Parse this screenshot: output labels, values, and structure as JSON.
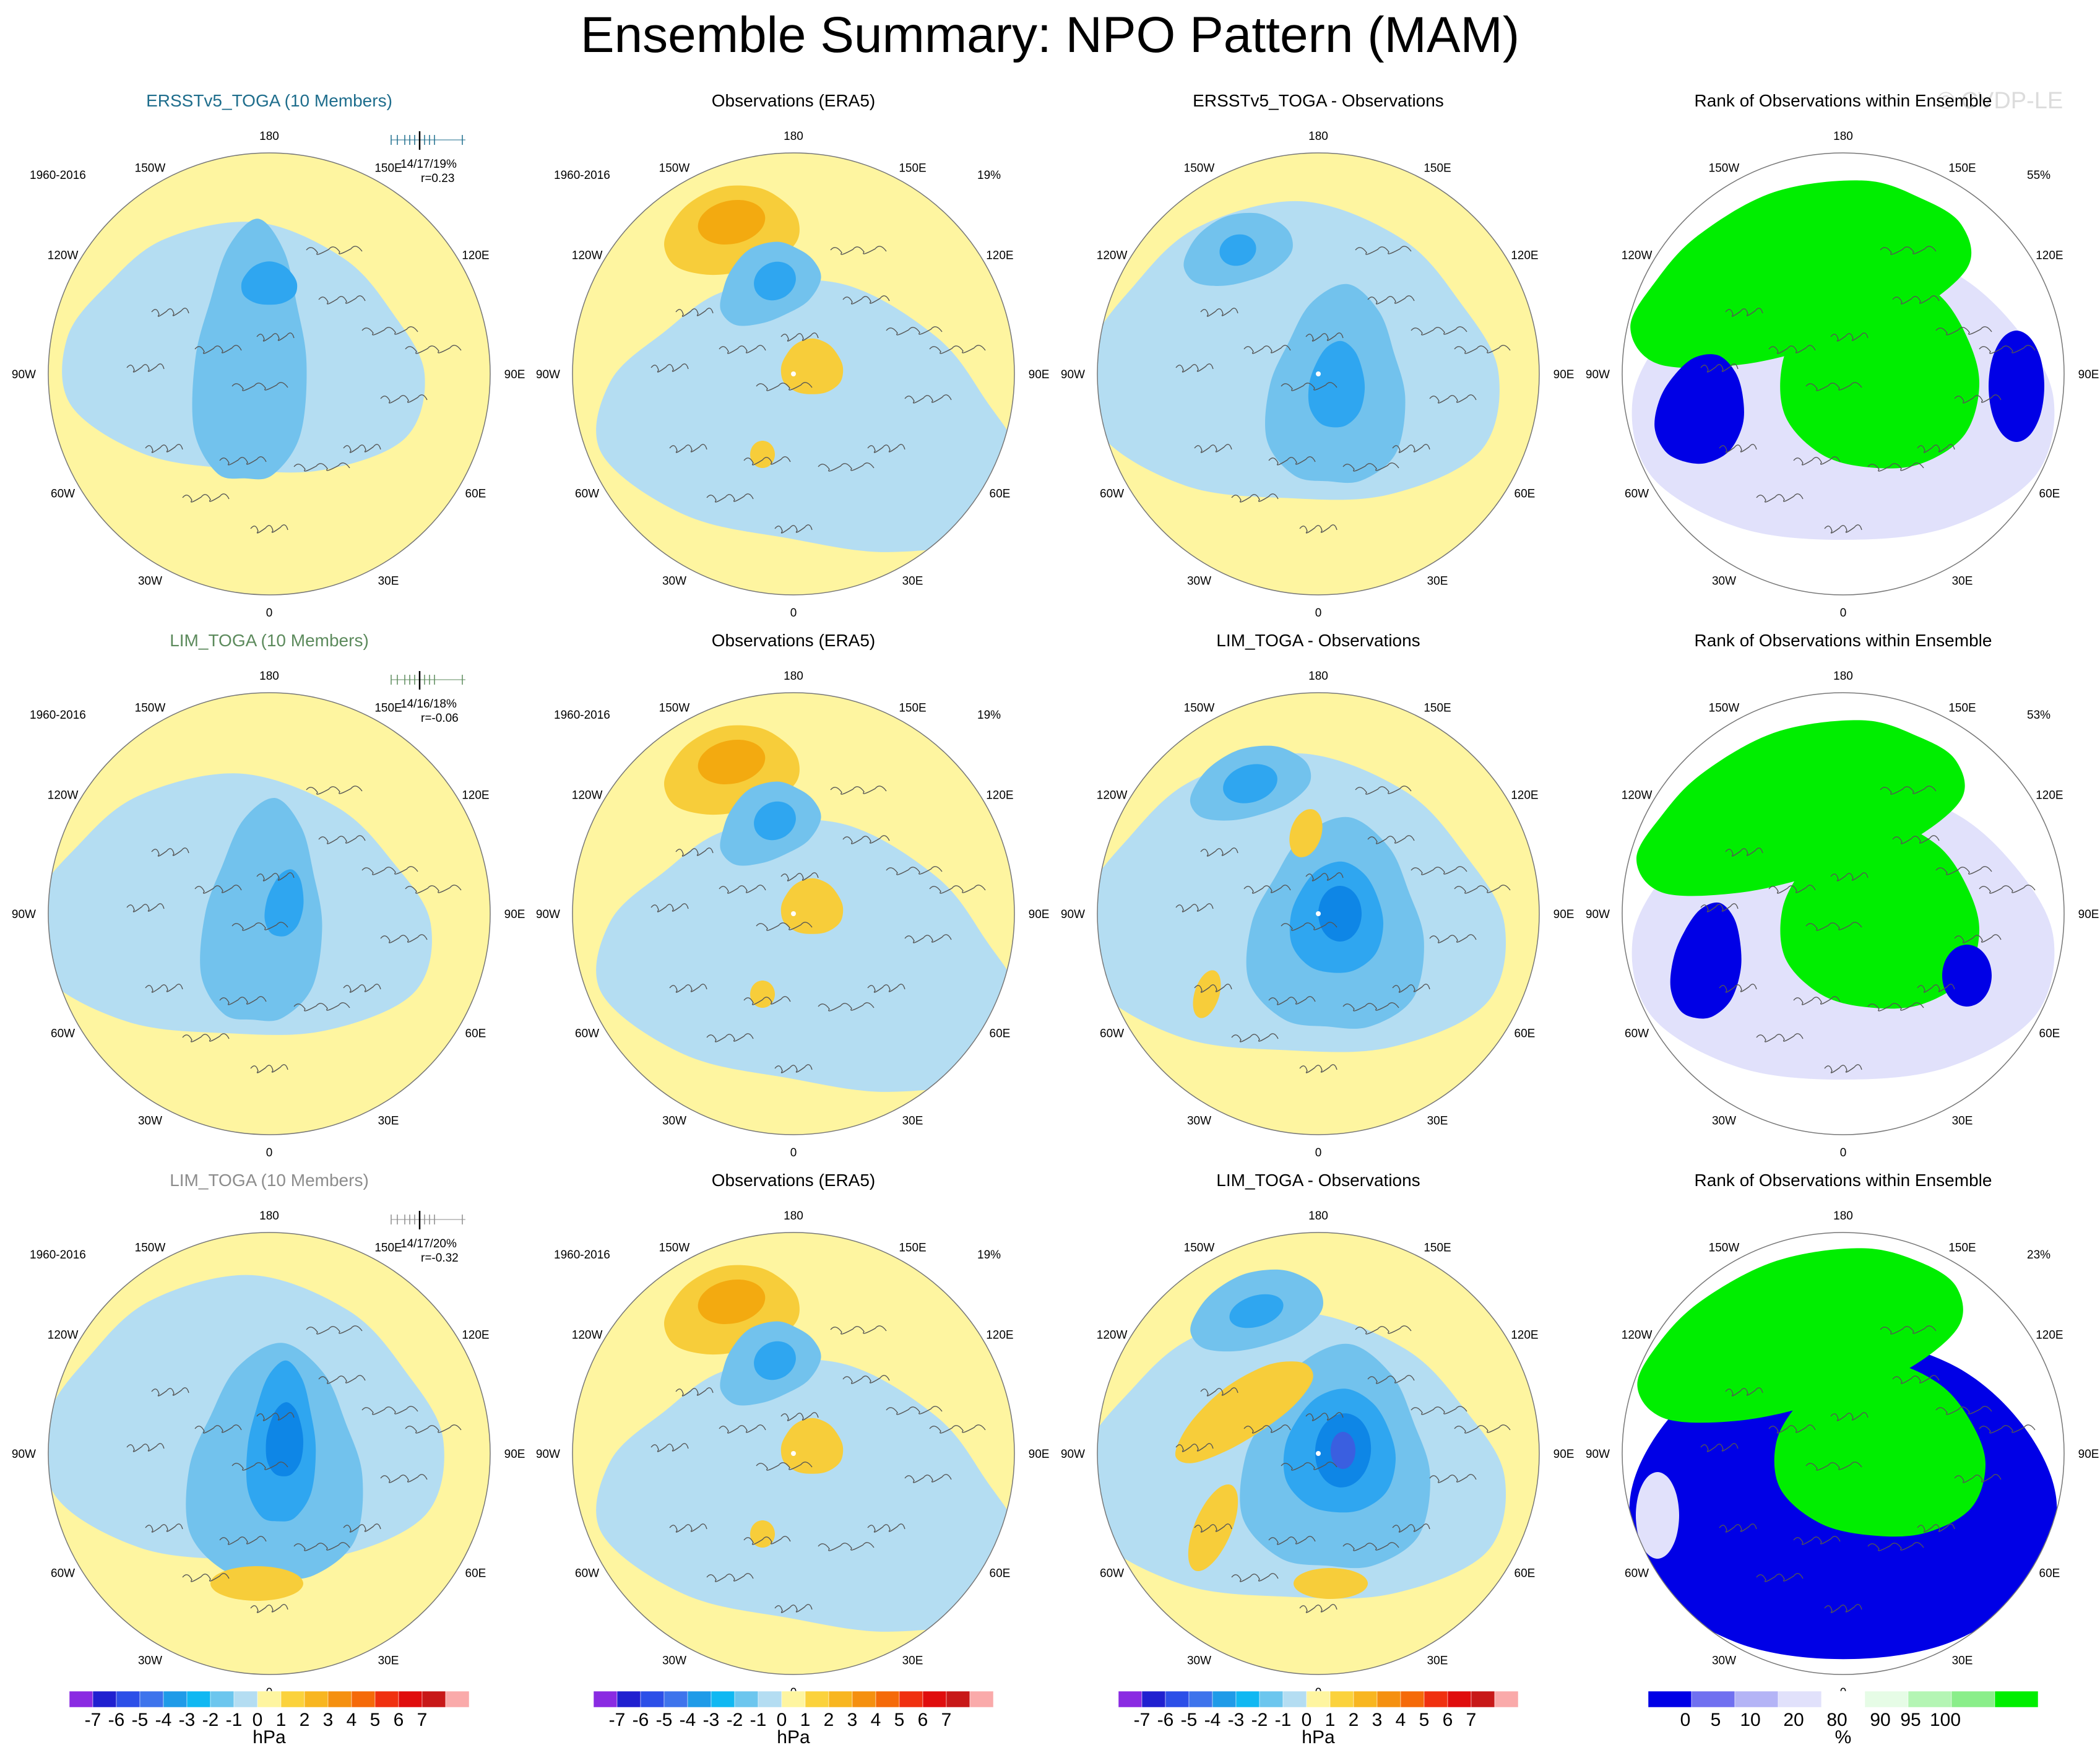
{
  "title": "Ensemble Summary: NPO Pattern (MAM)",
  "watermark": "© CVDP-LE",
  "lon_labels": [
    "180",
    "150E",
    "120E",
    "90E",
    "60E",
    "30E",
    "0",
    "30W",
    "60W",
    "90W",
    "120W",
    "150W"
  ],
  "map_colors": {
    "ocean_yellow": "#fef5a0",
    "blue_1": "#b4ddf2",
    "blue_2": "#72c2ed",
    "blue_3": "#2fa6f0",
    "blue_4": "#0e86e6",
    "blue_5": "#3a5fe0",
    "orange_1": "#f7cd3a",
    "orange_2": "#f3aa10",
    "green": "#00ee00",
    "dark_blue": "#0000e6",
    "lavender": "#e1e1fb",
    "pale_green": "#e6fce6"
  },
  "rows": [
    {
      "panels": [
        {
          "title": "ERSSTv5_TOGA (10 Members)",
          "title_color": "#1e6d8c",
          "period": "1960-2016",
          "stats_line1": "14/17/19%",
          "stats_line2": "r=0.23",
          "tick_color": "#1e6d8c"
        },
        {
          "title": "Observations (ERA5)",
          "title_color": "#000000",
          "period": "1960-2016",
          "pct": "19%"
        },
        {
          "title": "ERSSTv5_TOGA - Observations",
          "title_color": "#000000"
        },
        {
          "title": "Rank of Observations within Ensemble",
          "title_color": "#000000",
          "pct": "55%"
        }
      ]
    },
    {
      "panels": [
        {
          "title": "LIM_TOGA (10 Members)",
          "title_color": "#5c8a5c",
          "period": "1960-2016",
          "stats_line1": "14/16/18%",
          "stats_line2": "r=-0.06",
          "tick_color": "#5c8a5c"
        },
        {
          "title": "Observations (ERA5)",
          "title_color": "#000000",
          "period": "1960-2016",
          "pct": "19%"
        },
        {
          "title": "LIM_TOGA - Observations",
          "title_color": "#000000"
        },
        {
          "title": "Rank of Observations within Ensemble",
          "title_color": "#000000",
          "pct": "53%"
        }
      ]
    },
    {
      "panels": [
        {
          "title": "LIM_TOGA (10 Members)",
          "title_color": "#8c8c8c",
          "period": "1960-2016",
          "stats_line1": "14/17/20%",
          "stats_line2": "r=-0.32",
          "tick_color": "#8c8c8c"
        },
        {
          "title": "Observations (ERA5)",
          "title_color": "#000000",
          "period": "1960-2016",
          "pct": "19%"
        },
        {
          "title": "LIM_TOGA - Observations",
          "title_color": "#000000"
        },
        {
          "title": "Rank of Observations within Ensemble",
          "title_color": "#000000",
          "pct": "23%"
        }
      ]
    }
  ],
  "colorbars": {
    "hpa": {
      "colors": [
        "#8a2be2",
        "#2020d0",
        "#2c4fe8",
        "#3e74ec",
        "#1f9be8",
        "#10b8f2",
        "#6cc6ee",
        "#b4ddf2",
        "#fef5a0",
        "#fbd23c",
        "#f8b620",
        "#f59010",
        "#f56a0a",
        "#f03010",
        "#e00d0d",
        "#c81818",
        "#faaaaa"
      ],
      "labels": [
        "-7",
        "-6",
        "-5",
        "-4",
        "-3",
        "-2",
        "-1",
        "0",
        "1",
        "2",
        "3",
        "4",
        "5",
        "6",
        "7"
      ],
      "unit": "hPa"
    },
    "rank": {
      "colors": [
        "#0000e6",
        "#7070f0",
        "#b4b4f6",
        "#e1e1fb",
        "#ffffff",
        "#e6fce6",
        "#b4f5b4",
        "#8aee8a",
        "#00ee00"
      ],
      "labels": [
        "0",
        "5",
        "10",
        "20",
        "80",
        "90",
        "95",
        "100"
      ],
      "unit": "%"
    }
  }
}
